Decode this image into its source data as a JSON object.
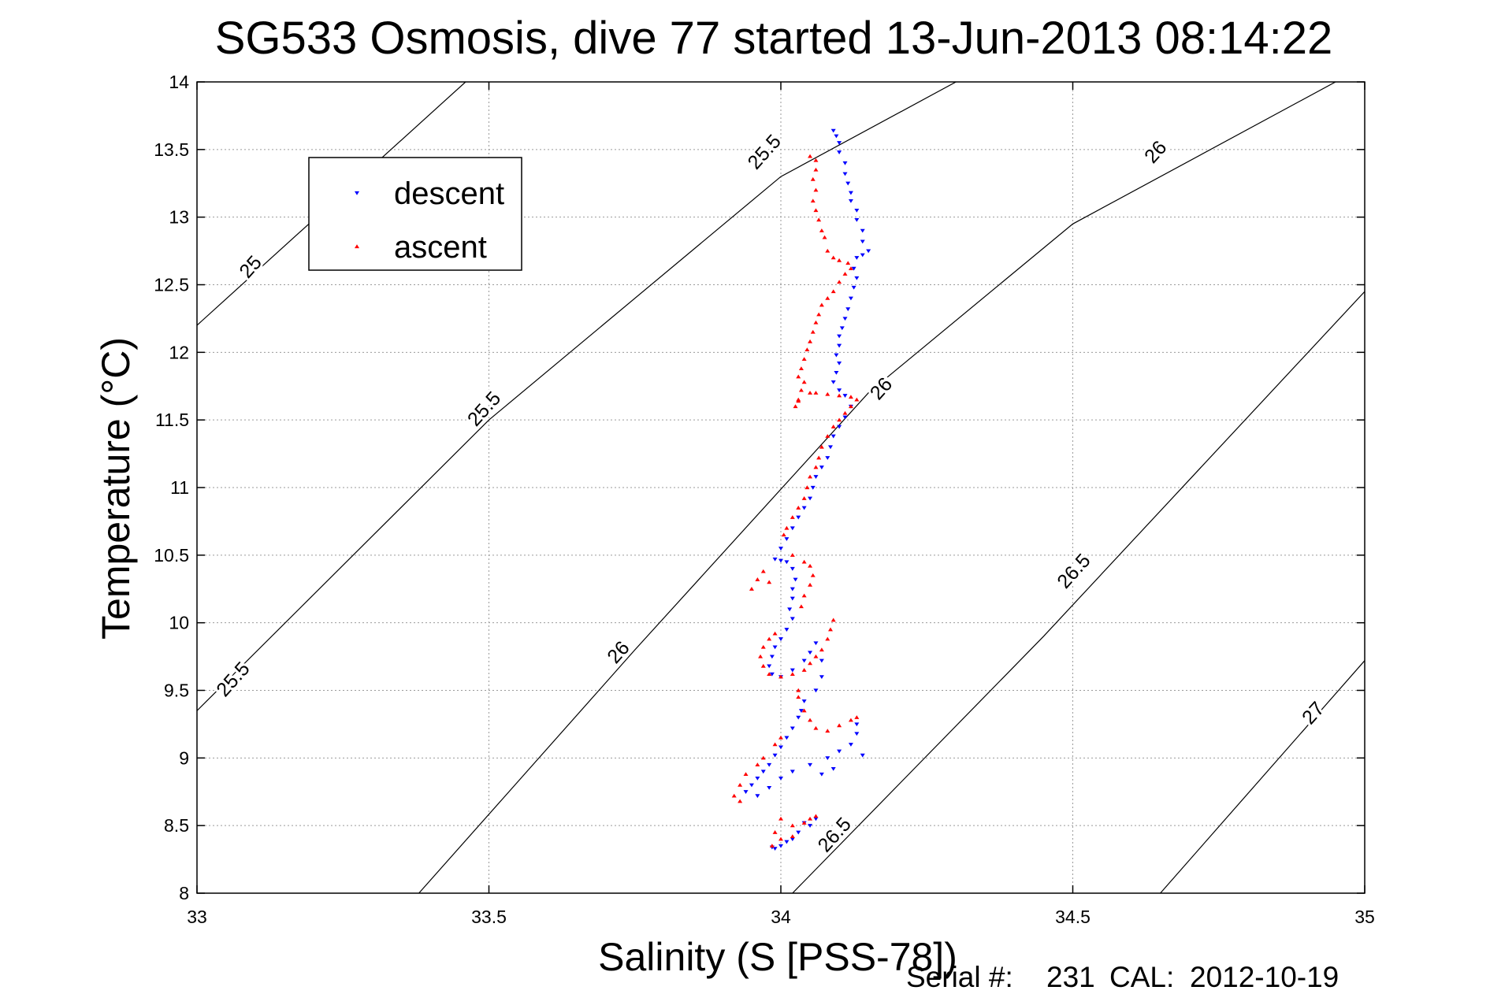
{
  "chart_data": {
    "type": "scatter",
    "title": "SG533 Osmosis, dive 77 started 13-Jun-2013 08:14:22",
    "xlabel": "Salinity (S [PSS-78])",
    "ylabel": "Temperature (°C)",
    "xlim": [
      33,
      35
    ],
    "ylim": [
      8,
      14
    ],
    "x_ticks": [
      "33",
      "33.5",
      "34",
      "34.5",
      "35"
    ],
    "y_ticks": [
      "8",
      "8.5",
      "9",
      "9.5",
      "10",
      "10.5",
      "11",
      "11.5",
      "12",
      "12.5",
      "13",
      "13.5",
      "14"
    ],
    "grid": true,
    "legend_position": "top-left",
    "legend": [
      {
        "label": "descent",
        "color": "#0000ff",
        "marker": "triangle-down"
      },
      {
        "label": "ascent",
        "color": "#ff0000",
        "marker": "triangle-up"
      }
    ],
    "density_contours": [
      {
        "level": 25,
        "points": [
          [
            33.0,
            12.2
          ],
          [
            33.46,
            14.0
          ]
        ]
      },
      {
        "level": 25.5,
        "points": [
          [
            33.0,
            9.35
          ],
          [
            33.5,
            11.5
          ],
          [
            34.0,
            13.3
          ],
          [
            34.3,
            14.0
          ]
        ]
      },
      {
        "level": 26,
        "points": [
          [
            33.38,
            8.0
          ],
          [
            33.75,
            9.8
          ],
          [
            34.15,
            11.7
          ],
          [
            34.5,
            12.95
          ],
          [
            34.95,
            14.0
          ]
        ]
      },
      {
        "level": 26.5,
        "points": [
          [
            34.02,
            8.0
          ],
          [
            34.45,
            9.9
          ],
          [
            35.0,
            12.45
          ]
        ]
      },
      {
        "level": 27,
        "points": [
          [
            34.65,
            8.0
          ],
          [
            35.0,
            9.72
          ]
        ]
      }
    ],
    "contour_labels": [
      {
        "text": "25",
        "x": 33.1,
        "y": 12.6,
        "angle": -48
      },
      {
        "text": "25.5",
        "x": 33.98,
        "y": 13.45,
        "angle": -48
      },
      {
        "text": "26",
        "x": 34.65,
        "y": 13.45,
        "angle": -48
      },
      {
        "text": "25.5",
        "x": 33.5,
        "y": 11.55,
        "angle": -48
      },
      {
        "text": "26",
        "x": 34.18,
        "y": 11.7,
        "angle": -48
      },
      {
        "text": "25.5",
        "x": 33.07,
        "y": 9.55,
        "angle": -48
      },
      {
        "text": "26",
        "x": 33.73,
        "y": 9.75,
        "angle": -48
      },
      {
        "text": "26.5",
        "x": 34.51,
        "y": 10.35,
        "angle": -48
      },
      {
        "text": "26.5",
        "x": 34.1,
        "y": 8.4,
        "angle": -48
      },
      {
        "text": "27",
        "x": 34.92,
        "y": 9.3,
        "angle": -48
      }
    ],
    "series": [
      {
        "name": "descent",
        "color": "#0000ff",
        "marker": "triangle-down",
        "points": [
          [
            34.09,
            13.64
          ],
          [
            34.095,
            13.6
          ],
          [
            34.1,
            13.55
          ],
          [
            34.1,
            13.48
          ],
          [
            34.11,
            13.4
          ],
          [
            34.11,
            13.32
          ],
          [
            34.115,
            13.25
          ],
          [
            34.12,
            13.18
          ],
          [
            34.12,
            13.12
          ],
          [
            34.13,
            13.05
          ],
          [
            34.13,
            12.98
          ],
          [
            34.14,
            12.9
          ],
          [
            34.14,
            12.82
          ],
          [
            34.15,
            12.75
          ],
          [
            34.14,
            12.72
          ],
          [
            34.13,
            12.7
          ],
          [
            34.125,
            12.62
          ],
          [
            34.13,
            12.55
          ],
          [
            34.125,
            12.48
          ],
          [
            34.12,
            12.4
          ],
          [
            34.115,
            12.32
          ],
          [
            34.11,
            12.25
          ],
          [
            34.105,
            12.18
          ],
          [
            34.1,
            12.12
          ],
          [
            34.1,
            12.05
          ],
          [
            34.095,
            11.98
          ],
          [
            34.1,
            11.92
          ],
          [
            34.095,
            11.85
          ],
          [
            34.09,
            11.78
          ],
          [
            34.1,
            11.72
          ],
          [
            34.11,
            11.68
          ],
          [
            34.12,
            11.6
          ],
          [
            34.11,
            11.52
          ],
          [
            34.1,
            11.45
          ],
          [
            34.09,
            11.38
          ],
          [
            34.085,
            11.3
          ],
          [
            34.08,
            11.22
          ],
          [
            34.07,
            11.15
          ],
          [
            34.06,
            11.08
          ],
          [
            34.055,
            11.0
          ],
          [
            34.05,
            10.92
          ],
          [
            34.04,
            10.85
          ],
          [
            34.03,
            10.78
          ],
          [
            34.02,
            10.7
          ],
          [
            34.01,
            10.62
          ],
          [
            34.0,
            10.55
          ],
          [
            33.99,
            10.47
          ],
          [
            34.0,
            10.46
          ],
          [
            34.01,
            10.45
          ],
          [
            34.02,
            10.4
          ],
          [
            34.025,
            10.32
          ],
          [
            34.02,
            10.25
          ],
          [
            34.02,
            10.18
          ],
          [
            34.015,
            10.1
          ],
          [
            34.02,
            10.03
          ],
          [
            34.01,
            9.95
          ],
          [
            34.0,
            9.88
          ],
          [
            33.99,
            9.82
          ],
          [
            33.985,
            9.75
          ],
          [
            33.98,
            9.68
          ],
          [
            33.985,
            9.62
          ],
          [
            34.0,
            9.6
          ],
          [
            34.02,
            9.65
          ],
          [
            34.04,
            9.72
          ],
          [
            34.05,
            9.78
          ],
          [
            34.06,
            9.85
          ],
          [
            34.07,
            9.72
          ],
          [
            34.07,
            9.6
          ],
          [
            34.06,
            9.5
          ],
          [
            34.04,
            9.42
          ],
          [
            34.035,
            9.35
          ],
          [
            34.03,
            9.3
          ],
          [
            34.02,
            9.22
          ],
          [
            34.01,
            9.15
          ],
          [
            34.0,
            9.08
          ],
          [
            33.99,
            9.02
          ],
          [
            33.98,
            8.95
          ],
          [
            33.97,
            8.9
          ],
          [
            33.96,
            8.85
          ],
          [
            33.95,
            8.8
          ],
          [
            33.94,
            8.75
          ],
          [
            33.96,
            8.72
          ],
          [
            33.98,
            8.78
          ],
          [
            34.0,
            8.85
          ],
          [
            34.02,
            8.9
          ],
          [
            34.05,
            8.95
          ],
          [
            34.08,
            9.0
          ],
          [
            34.1,
            9.05
          ],
          [
            34.12,
            9.1
          ],
          [
            34.13,
            9.18
          ],
          [
            34.13,
            9.25
          ],
          [
            34.14,
            9.02
          ],
          [
            34.07,
            8.88
          ],
          [
            34.09,
            8.92
          ],
          [
            34.06,
            8.55
          ],
          [
            34.05,
            8.5
          ],
          [
            34.04,
            8.52
          ],
          [
            34.03,
            8.45
          ],
          [
            34.02,
            8.4
          ],
          [
            34.01,
            8.38
          ],
          [
            34.0,
            8.35
          ],
          [
            33.99,
            8.33
          ],
          [
            33.985,
            8.34
          ]
        ]
      },
      {
        "name": "ascent",
        "color": "#ff0000",
        "marker": "triangle-up",
        "points": [
          [
            34.05,
            13.45
          ],
          [
            34.06,
            13.42
          ],
          [
            34.06,
            13.35
          ],
          [
            34.055,
            13.28
          ],
          [
            34.06,
            13.2
          ],
          [
            34.055,
            13.12
          ],
          [
            34.06,
            13.05
          ],
          [
            34.065,
            12.98
          ],
          [
            34.07,
            12.9
          ],
          [
            34.075,
            12.85
          ],
          [
            34.08,
            12.75
          ],
          [
            34.09,
            12.7
          ],
          [
            34.1,
            12.68
          ],
          [
            34.115,
            12.66
          ],
          [
            34.12,
            12.62
          ],
          [
            34.11,
            12.58
          ],
          [
            34.1,
            12.52
          ],
          [
            34.09,
            12.45
          ],
          [
            34.08,
            12.4
          ],
          [
            34.07,
            12.35
          ],
          [
            34.065,
            12.28
          ],
          [
            34.06,
            12.22
          ],
          [
            34.055,
            12.15
          ],
          [
            34.05,
            12.08
          ],
          [
            34.045,
            12.02
          ],
          [
            34.04,
            11.95
          ],
          [
            34.035,
            11.88
          ],
          [
            34.03,
            11.82
          ],
          [
            34.04,
            11.78
          ],
          [
            34.035,
            11.72
          ],
          [
            34.03,
            11.65
          ],
          [
            34.025,
            11.6
          ],
          [
            34.03,
            11.64
          ],
          [
            34.05,
            11.7
          ],
          [
            34.06,
            11.7
          ],
          [
            34.08,
            11.69
          ],
          [
            34.1,
            11.68
          ],
          [
            34.12,
            11.67
          ],
          [
            34.13,
            11.65
          ],
          [
            34.12,
            11.6
          ],
          [
            34.11,
            11.55
          ],
          [
            34.1,
            11.5
          ],
          [
            34.09,
            11.45
          ],
          [
            34.08,
            11.38
          ],
          [
            34.07,
            11.3
          ],
          [
            34.065,
            11.22
          ],
          [
            34.06,
            11.15
          ],
          [
            34.05,
            11.08
          ],
          [
            34.045,
            11.0
          ],
          [
            34.04,
            10.92
          ],
          [
            34.03,
            10.85
          ],
          [
            34.02,
            10.78
          ],
          [
            34.01,
            10.7
          ],
          [
            34.005,
            10.65
          ],
          [
            34.02,
            10.5
          ],
          [
            34.04,
            10.45
          ],
          [
            34.05,
            10.42
          ],
          [
            34.055,
            10.35
          ],
          [
            34.05,
            10.28
          ],
          [
            34.04,
            10.2
          ],
          [
            34.035,
            10.12
          ],
          [
            33.97,
            10.38
          ],
          [
            33.96,
            10.32
          ],
          [
            33.95,
            10.25
          ],
          [
            33.98,
            10.3
          ],
          [
            34.09,
            10.02
          ],
          [
            34.085,
            9.95
          ],
          [
            34.08,
            9.88
          ],
          [
            34.07,
            9.8
          ],
          [
            34.06,
            9.75
          ],
          [
            34.05,
            9.7
          ],
          [
            34.04,
            9.65
          ],
          [
            34.02,
            9.62
          ],
          [
            34.0,
            9.6
          ],
          [
            33.98,
            9.62
          ],
          [
            33.97,
            9.68
          ],
          [
            33.965,
            9.75
          ],
          [
            33.97,
            9.82
          ],
          [
            33.98,
            9.88
          ],
          [
            33.99,
            9.92
          ],
          [
            34.03,
            9.5
          ],
          [
            34.03,
            9.45
          ],
          [
            34.04,
            9.35
          ],
          [
            34.05,
            9.28
          ],
          [
            34.06,
            9.22
          ],
          [
            34.08,
            9.2
          ],
          [
            34.1,
            9.24
          ],
          [
            34.12,
            9.28
          ],
          [
            34.13,
            9.3
          ],
          [
            34.0,
            9.15
          ],
          [
            33.99,
            9.1
          ],
          [
            33.97,
            9.0
          ],
          [
            33.96,
            8.95
          ],
          [
            33.94,
            8.88
          ],
          [
            33.93,
            8.8
          ],
          [
            33.92,
            8.72
          ],
          [
            33.93,
            8.68
          ],
          [
            34.0,
            8.55
          ],
          [
            34.02,
            8.5
          ],
          [
            34.04,
            8.52
          ],
          [
            34.05,
            8.55
          ],
          [
            34.06,
            8.57
          ],
          [
            33.99,
            8.45
          ],
          [
            33.985,
            8.35
          ],
          [
            34.0,
            8.4
          ],
          [
            34.02,
            8.42
          ]
        ]
      }
    ]
  },
  "footer": {
    "serial_label": "Serial #:",
    "serial_value": "231",
    "cal_label": "CAL:",
    "cal_value": "2012-10-19"
  }
}
